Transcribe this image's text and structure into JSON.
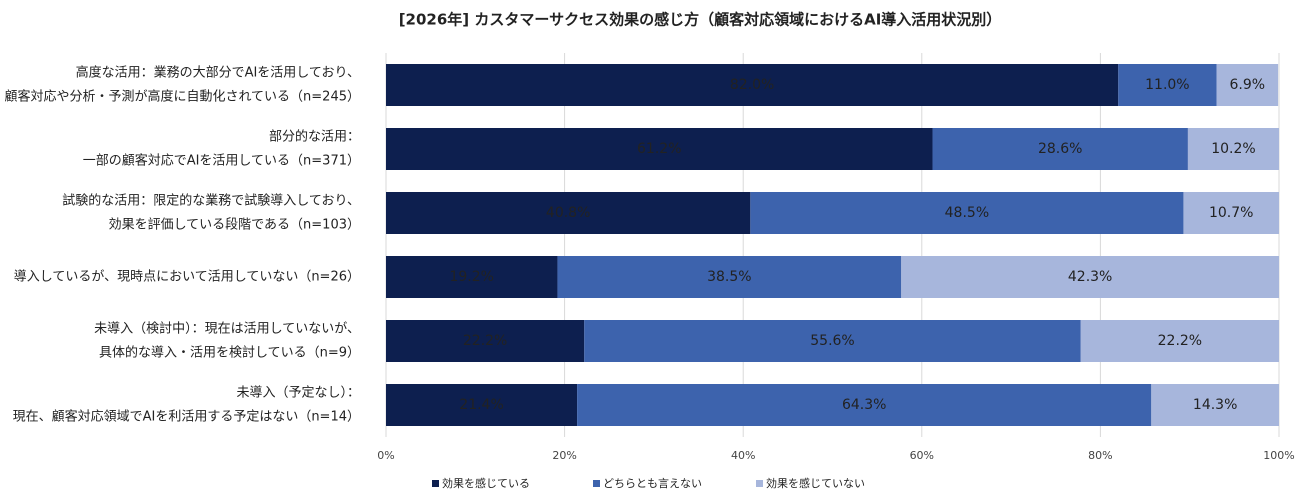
{
  "chart_data": {
    "type": "stacked_bar_horizontal",
    "title": "[2026年] カスタマーサクセス効果の感じ方（顧客対応領域におけるAI導入活用状況別）",
    "categories": [
      [
        "高度な活用：業務の大部分でAIを活用しており、",
        "顧客対応や分析・予測が高度に自動化されている（n=245）"
      ],
      [
        "部分的な活用：",
        "一部の顧客対応でAIを活用している（n=371）"
      ],
      [
        "試験的な活用：限定的な業務で試験導入しており、",
        "効果を評価している段階である（n=103）"
      ],
      [
        "導入しているが、現時点において活用していない（n=26）"
      ],
      [
        "未導入（検討中）：現在は活用していないが、",
        "具体的な導入・活用を検討している（n=9）"
      ],
      [
        "未導入（予定なし）：",
        "現在、顧客対応領域でAIを利活用する予定はない（n=14）"
      ]
    ],
    "series": [
      {
        "name": "効果を感じている",
        "color": "#0d1f4f",
        "label_color": "#ffffff",
        "values": [
          82.0,
          61.2,
          40.8,
          19.2,
          22.2,
          21.4
        ],
        "value_labels": [
          "82.0%",
          "61.2%",
          "40.8%",
          "19.2%",
          "22.2%",
          "21.4%"
        ]
      },
      {
        "name": "どちらとも言えない",
        "color": "#3d63ad",
        "label_color": "#ffffff",
        "values": [
          11.0,
          28.6,
          48.5,
          38.5,
          55.6,
          64.3
        ],
        "value_labels": [
          "11.0%",
          "28.6%",
          "48.5%",
          "38.5%",
          "55.6%",
          "64.3%"
        ]
      },
      {
        "name": "効果を感じていない",
        "color": "#a7b6dc",
        "label_color": "#222222",
        "values": [
          6.9,
          10.2,
          10.7,
          42.3,
          22.2,
          14.3
        ],
        "value_labels": [
          "6.9%",
          "10.2%",
          "10.7%",
          "42.3%",
          "22.2%",
          "14.3%"
        ]
      }
    ],
    "xlim": [
      0,
      100
    ],
    "xticks": [
      {
        "value": 0,
        "label": "0%"
      },
      {
        "value": 20,
        "label": "20%"
      },
      {
        "value": 40,
        "label": "40%"
      },
      {
        "value": 60,
        "label": "60%"
      },
      {
        "value": 80,
        "label": "80%"
      },
      {
        "value": 100,
        "label": "100%"
      }
    ],
    "grid": true,
    "legend": "bottom"
  }
}
